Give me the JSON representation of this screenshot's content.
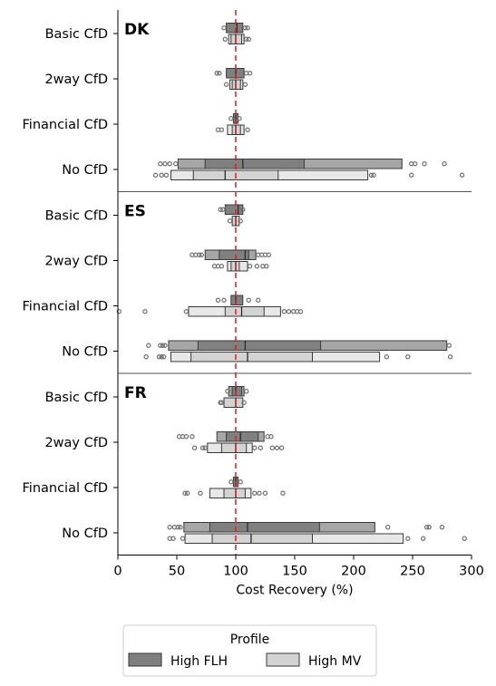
{
  "chart_data": {
    "type": "boxen",
    "orientation": "horizontal",
    "xlabel": "Cost Recovery (%)",
    "xlim": [
      0,
      300
    ],
    "xticks": [
      0,
      50,
      100,
      150,
      200,
      250,
      300
    ],
    "reference_line": {
      "x": 100,
      "color": "#e41a1c",
      "style": "dashed"
    },
    "categories": [
      "Basic CfD",
      "2way CfD",
      "Financial CfD",
      "No CfD"
    ],
    "legend": {
      "title": "Profile",
      "placement": "bottom-center",
      "entries": [
        {
          "label": "High FLH",
          "color": "#808080"
        },
        {
          "label": "High MV",
          "color": "#d3d3d3"
        }
      ]
    },
    "panels": [
      {
        "title": "DK",
        "groups": [
          {
            "category": "Basic CfD",
            "series": [
              {
                "name": "High FLH",
                "median": 101,
                "boxes": [
                  [
                    92,
                    106
                  ]
                ],
                "outliers": [
                  90,
                  108,
                  110
                ]
              },
              {
                "name": "High MV",
                "median": 100,
                "boxes": [
                  [
                    96,
                    105
                  ],
                  [
                    94,
                    107
                  ]
                ],
                "outliers": [
                  91,
                  109,
                  111
                ]
              }
            ]
          },
          {
            "category": "2way CfD",
            "series": [
              {
                "name": "High FLH",
                "median": 100,
                "boxes": [
                  [
                    92,
                    107
                  ]
                ],
                "outliers": [
                  84,
                  86,
                  109,
                  112
                ]
              },
              {
                "name": "High MV",
                "median": 100,
                "boxes": [
                  [
                    97,
                    104
                  ],
                  [
                    95,
                    106
                  ]
                ],
                "outliers": [
                  92,
                  108
                ]
              }
            ]
          },
          {
            "category": "Financial CfD",
            "series": [
              {
                "name": "High FLH",
                "median": 100,
                "boxes": [
                  [
                    98,
                    102
                  ]
                ],
                "outliers": [
                  96,
                  103
                ]
              },
              {
                "name": "High MV",
                "median": 100,
                "boxes": [
                  [
                    97,
                    104
                  ],
                  [
                    93,
                    107
                  ]
                ],
                "outliers": [
                  85,
                  88,
                  110
                ]
              }
            ]
          },
          {
            "category": "No CfD",
            "series": [
              {
                "name": "High FLH",
                "median": 106,
                "boxes": [
                  [
                    74,
                    158
                  ],
                  [
                    51,
                    241
                  ]
                ],
                "outliers": [
                  36,
                  40,
                  44,
                  49,
                  249,
                  252,
                  260,
                  277
                ]
              },
              {
                "name": "High MV",
                "median": 91,
                "boxes": [
                  [
                    64,
                    136
                  ],
                  [
                    45,
                    212
                  ]
                ],
                "outliers": [
                  32,
                  37,
                  41,
                  215,
                  217,
                  249,
                  292
                ]
              }
            ]
          }
        ]
      },
      {
        "title": "ES",
        "groups": [
          {
            "category": "Basic CfD",
            "series": [
              {
                "name": "High FLH",
                "median": 102,
                "boxes": [
                  [
                    91,
                    106
                  ]
                ],
                "outliers": [
                  87,
                  89,
                  106
                ]
              },
              {
                "name": "High MV",
                "median": 100,
                "boxes": [
                  [
                    97,
                    103
                  ]
                ],
                "outliers": [
                  95,
                  104
                ]
              }
            ]
          },
          {
            "category": "2way CfD",
            "series": [
              {
                "name": "High FLH",
                "median": 108,
                "boxes": [
                  [
                    86,
                    111
                  ],
                  [
                    74,
                    117
                  ]
                ],
                "outliers": [
                  63,
                  66,
                  69,
                  71,
                  119,
                  122,
                  125,
                  128
                ]
              },
              {
                "name": "High MV",
                "median": 100,
                "boxes": [
                  [
                    96,
                    103
                  ],
                  [
                    93,
                    110
                  ]
                ],
                "outliers": [
                  82,
                  85,
                  88,
                  112,
                  118,
                  123,
                  126
                ]
              }
            ]
          },
          {
            "category": "Financial CfD",
            "series": [
              {
                "name": "High FLH",
                "median": 100,
                "boxes": [
                  [
                    96,
                    106
                  ]
                ],
                "outliers": [
                  85,
                  90,
                  111,
                  119
                ]
              },
              {
                "name": "High MV",
                "median": 105,
                "boxes": [
                  [
                    91,
                    124
                  ],
                  [
                    60,
                    138
                  ]
                ],
                "outliers": [
                  1,
                  23,
                  58,
                  141,
                  145,
                  149,
                  152,
                  155
                ]
              }
            ]
          },
          {
            "category": "No CfD",
            "series": [
              {
                "name": "High FLH",
                "median": 108,
                "boxes": [
                  [
                    68,
                    172
                  ],
                  [
                    43,
                    279
                  ]
                ],
                "outliers": [
                  26,
                  36,
                  38,
                  40,
                  281
                ]
              },
              {
                "name": "High MV",
                "median": 110,
                "boxes": [
                  [
                    62,
                    165
                  ],
                  [
                    45,
                    222
                  ]
                ],
                "outliers": [
                  24,
                  35,
                  37,
                  39,
                  228,
                  246,
                  282
                ]
              }
            ]
          }
        ]
      },
      {
        "title": "FR",
        "groups": [
          {
            "category": "Basic CfD",
            "series": [
              {
                "name": "High FLH",
                "median": 100,
                "boxes": [
                  [
                    97,
                    105
                  ],
                  [
                    94,
                    107
                  ]
                ],
                "outliers": [
                  93,
                  109
                ]
              },
              {
                "name": "High MV",
                "median": 100,
                "boxes": [
                  [
                    90,
                    106
                  ]
                ],
                "outliers": [
                  87,
                  88,
                  107
                ]
              }
            ]
          },
          {
            "category": "2way CfD",
            "series": [
              {
                "name": "High FLH",
                "median": 104,
                "boxes": [
                  [
                    92,
                    119
                  ],
                  [
                    84,
                    124
                  ]
                ],
                "outliers": [
                  52,
                  55,
                  58,
                  63,
                  127,
                  130
                ]
              },
              {
                "name": "High MV",
                "median": 100,
                "boxes": [
                  [
                    88,
                    109
                  ],
                  [
                    76,
                    114
                  ]
                ],
                "outliers": [
                  65,
                  72,
                  74,
                  116,
                  121,
                  131,
                  135,
                  139
                ]
              }
            ]
          },
          {
            "category": "Financial CfD",
            "series": [
              {
                "name": "High FLH",
                "median": 100,
                "boxes": [
                  [
                    98,
                    102
                  ]
                ],
                "outliers": [
                  96,
                  104
                ]
              },
              {
                "name": "High MV",
                "median": 100,
                "boxes": [
                  [
                    90,
                    108
                  ],
                  [
                    78,
                    113
                  ]
                ],
                "outliers": [
                  57,
                  59,
                  70,
                  116,
                  120,
                  125,
                  140
                ]
              }
            ]
          },
          {
            "category": "No CfD",
            "series": [
              {
                "name": "High FLH",
                "median": 110,
                "boxes": [
                  [
                    78,
                    171
                  ],
                  [
                    56,
                    218
                  ]
                ],
                "outliers": [
                  44,
                  48,
                  51,
                  53,
                  229,
                  262,
                  264,
                  275
                ]
              },
              {
                "name": "High MV",
                "median": 113,
                "boxes": [
                  [
                    80,
                    165
                  ],
                  [
                    57,
                    242
                  ]
                ],
                "outliers": [
                  44,
                  47,
                  55,
                  246,
                  259,
                  294
                ]
              }
            ]
          }
        ]
      }
    ]
  }
}
